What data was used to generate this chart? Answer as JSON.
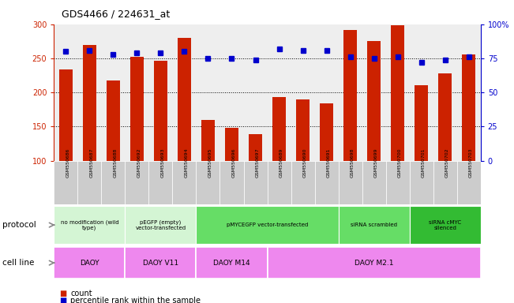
{
  "title": "GDS4466 / 224631_at",
  "samples": [
    "GSM550686",
    "GSM550687",
    "GSM550688",
    "GSM550692",
    "GSM550693",
    "GSM550694",
    "GSM550695",
    "GSM550696",
    "GSM550697",
    "GSM550689",
    "GSM550690",
    "GSM550691",
    "GSM550698",
    "GSM550699",
    "GSM550700",
    "GSM550701",
    "GSM550702",
    "GSM550703"
  ],
  "counts": [
    234,
    270,
    217,
    252,
    246,
    280,
    160,
    148,
    139,
    193,
    190,
    184,
    291,
    275,
    299,
    211,
    228,
    256
  ],
  "percentiles": [
    80,
    81,
    78,
    79,
    79,
    80,
    75,
    75,
    74,
    82,
    81,
    81,
    76,
    75,
    76,
    72,
    74,
    76
  ],
  "ylim_left": [
    100,
    300
  ],
  "ylim_right": [
    0,
    100
  ],
  "yticks_left": [
    100,
    150,
    200,
    250,
    300
  ],
  "yticks_right": [
    0,
    25,
    50,
    75,
    100
  ],
  "bar_color": "#cc2200",
  "dot_color": "#0000cc",
  "grid_lines": [
    150,
    200,
    250
  ],
  "chart_bg": "#eeeeee",
  "xtick_bg": "#cccccc",
  "protocol_groups": [
    {
      "label": "no modification (wild\ntype)",
      "start": 0,
      "end": 3,
      "color": "#d4f5d4"
    },
    {
      "label": "pEGFP (empty)\nvector-transfected",
      "start": 3,
      "end": 6,
      "color": "#d4f5d4"
    },
    {
      "label": "pMYCEGFP vector-transfected",
      "start": 6,
      "end": 12,
      "color": "#66dd66"
    },
    {
      "label": "siRNA scrambled",
      "start": 12,
      "end": 15,
      "color": "#66dd66"
    },
    {
      "label": "siRNA cMYC\nsilenced",
      "start": 15,
      "end": 18,
      "color": "#33bb33"
    }
  ],
  "cellline_groups": [
    {
      "label": "DAOY",
      "start": 0,
      "end": 3
    },
    {
      "label": "DAOY V11",
      "start": 3,
      "end": 6
    },
    {
      "label": "DAOY M14",
      "start": 6,
      "end": 9
    },
    {
      "label": "DAOY M2.1",
      "start": 9,
      "end": 18
    }
  ],
  "cellline_color": "#ee88ee",
  "legend_count": "count",
  "legend_pct": "percentile rank within the sample",
  "protocol_row_label": "protocol",
  "cellline_row_label": "cell line"
}
